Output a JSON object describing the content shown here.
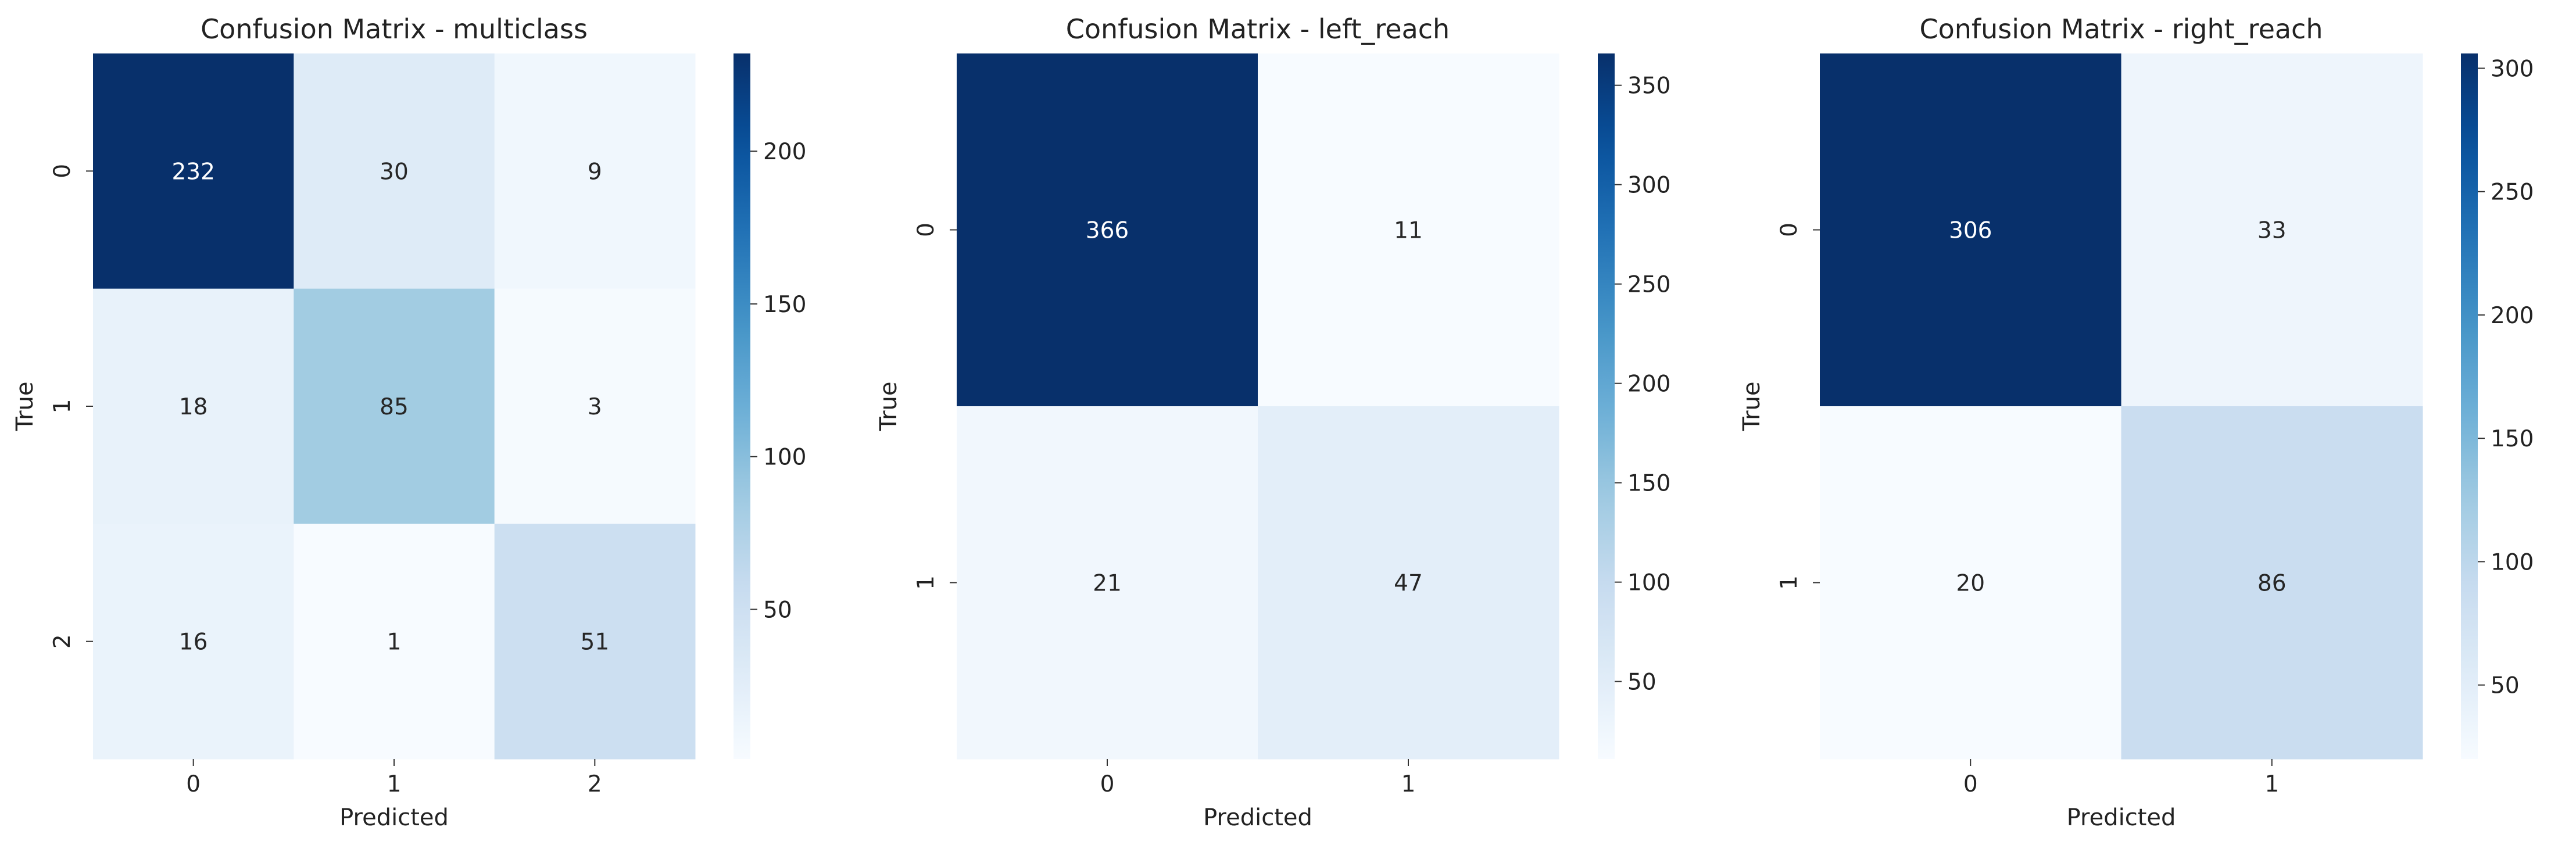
{
  "colormap": [
    "#f7fbff",
    "#deebf7",
    "#c6dbef",
    "#9ecae1",
    "#6baed6",
    "#4292c6",
    "#2171b5",
    "#08519c",
    "#08306b"
  ],
  "chart_data": [
    {
      "type": "heatmap",
      "title": "Confusion Matrix - multiclass",
      "xlabel": "Predicted",
      "ylabel": "True",
      "x_categories": [
        "0",
        "1",
        "2"
      ],
      "y_categories": [
        "0",
        "1",
        "2"
      ],
      "values": [
        [
          232,
          30,
          9
        ],
        [
          18,
          85,
          3
        ],
        [
          16,
          1,
          51
        ]
      ],
      "colorbar": {
        "min": 1,
        "max": 232,
        "ticks": [
          50,
          100,
          150,
          200
        ]
      }
    },
    {
      "type": "heatmap",
      "title": "Confusion Matrix - left_reach",
      "xlabel": "Predicted",
      "ylabel": "True",
      "x_categories": [
        "0",
        "1"
      ],
      "y_categories": [
        "0",
        "1"
      ],
      "values": [
        [
          366,
          11
        ],
        [
          21,
          47
        ]
      ],
      "colorbar": {
        "min": 11,
        "max": 366,
        "ticks": [
          50,
          100,
          150,
          200,
          250,
          300,
          350
        ]
      }
    },
    {
      "type": "heatmap",
      "title": "Confusion Matrix - right_reach",
      "xlabel": "Predicted",
      "ylabel": "True",
      "x_categories": [
        "0",
        "1"
      ],
      "y_categories": [
        "0",
        "1"
      ],
      "values": [
        [
          306,
          33
        ],
        [
          20,
          86
        ]
      ],
      "colorbar": {
        "min": 20,
        "max": 306,
        "ticks": [
          50,
          100,
          150,
          200,
          250,
          300
        ]
      }
    }
  ]
}
